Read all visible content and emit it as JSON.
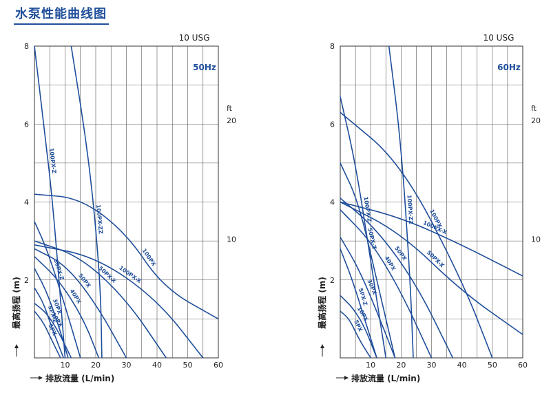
{
  "page": {
    "title": "水泵性能曲线图"
  },
  "colors": {
    "curve": "#1f4e9b",
    "frame": "#333333",
    "grid": "#555555",
    "text": "#222222",
    "title": "#1f4e9b",
    "background": "#ffffff"
  },
  "chart_data": [
    {
      "type": "line",
      "frequency_label": "50Hz",
      "top_axis_label": "10 USG",
      "right_axis_unit": "ft",
      "ylabel": "最高扬程 (m)",
      "xlabel": "排放流量 (L/min)",
      "xlim": [
        0,
        60
      ],
      "ylim": [
        0,
        8
      ],
      "x_ticks": [
        10,
        20,
        30,
        40,
        50,
        60
      ],
      "y_ticks": [
        2,
        4,
        6,
        8
      ],
      "right_ticks": [
        10,
        20
      ],
      "grid": true,
      "series": [
        {
          "name": "5PX",
          "x": [
            0,
            3,
            6,
            8.5
          ],
          "y": [
            1.2,
            0.9,
            0.4,
            0
          ]
        },
        {
          "name": "5PX-Z",
          "x": [
            0,
            3,
            6,
            9.5
          ],
          "y": [
            1.8,
            1.4,
            0.7,
            0
          ]
        },
        {
          "name": "10PX",
          "x": [
            0,
            4,
            8,
            12
          ],
          "y": [
            1.4,
            1.15,
            0.65,
            0
          ]
        },
        {
          "name": "30PX",
          "x": [
            0,
            4,
            8,
            11
          ],
          "y": [
            2.3,
            1.7,
            0.8,
            0
          ]
        },
        {
          "name": "40PX",
          "x": [
            0,
            8,
            16,
            21
          ],
          "y": [
            2.6,
            2.0,
            1.0,
            0
          ]
        },
        {
          "name": "50PX",
          "x": [
            0,
            10,
            20,
            30
          ],
          "y": [
            2.8,
            2.4,
            1.4,
            0
          ]
        },
        {
          "name": "50PX-Z",
          "x": [
            0,
            4,
            9,
            15
          ],
          "y": [
            3.5,
            2.8,
            1.6,
            0
          ]
        },
        {
          "name": "50PX-X",
          "x": [
            0,
            15,
            30,
            43
          ],
          "y": [
            3.0,
            2.6,
            1.5,
            0
          ]
        },
        {
          "name": "100PX-X",
          "x": [
            0,
            20,
            40,
            55
          ],
          "y": [
            2.9,
            2.6,
            1.5,
            0
          ]
        },
        {
          "name": "100PX",
          "x": [
            0,
            15,
            30,
            42,
            60
          ],
          "y": [
            4.2,
            4.1,
            3.2,
            1.8,
            1.0
          ]
        },
        {
          "name": "100PX-Z",
          "x": [
            0,
            3,
            6,
            10
          ],
          "y": [
            8.0,
            6.0,
            4.0,
            0
          ]
        },
        {
          "name": "100PX-ZZ",
          "x": [
            12,
            18,
            21.5,
            22
          ],
          "y": [
            8.0,
            5.0,
            2.0,
            0
          ]
        }
      ]
    },
    {
      "type": "line",
      "frequency_label": "60Hz",
      "top_axis_label": "10 USG",
      "right_axis_unit": "ft",
      "ylabel": "最高扬程 (m)",
      "xlabel": "排放流量 (L/min)",
      "xlim": [
        0,
        60
      ],
      "ylim": [
        0,
        8
      ],
      "x_ticks": [
        10,
        20,
        30,
        40,
        50,
        60
      ],
      "y_ticks": [
        2,
        4,
        6,
        8
      ],
      "right_ticks": [
        10,
        20
      ],
      "grid": true,
      "series": [
        {
          "name": "5PX",
          "x": [
            0,
            3,
            6,
            10
          ],
          "y": [
            1.2,
            1.0,
            0.5,
            0
          ]
        },
        {
          "name": "5PX-Z",
          "x": [
            0,
            4,
            8,
            12
          ],
          "y": [
            2.8,
            2.0,
            1.0,
            0
          ]
        },
        {
          "name": "10PX",
          "x": [
            0,
            4,
            8,
            12
          ],
          "y": [
            1.6,
            1.3,
            0.8,
            0
          ]
        },
        {
          "name": "30PX",
          "x": [
            0,
            6,
            12,
            18
          ],
          "y": [
            3.1,
            2.3,
            1.2,
            0
          ]
        },
        {
          "name": "40PX",
          "x": [
            0,
            10,
            20,
            30
          ],
          "y": [
            3.8,
            3.0,
            1.7,
            0
          ]
        },
        {
          "name": "50PX",
          "x": [
            0,
            12,
            25,
            37
          ],
          "y": [
            4.1,
            3.3,
            1.9,
            0
          ]
        },
        {
          "name": "50PX-Z",
          "x": [
            0,
            6,
            12,
            18
          ],
          "y": [
            5.0,
            4.0,
            2.0,
            0
          ]
        },
        {
          "name": "50PX-X",
          "x": [
            0,
            20,
            40,
            60
          ],
          "y": [
            4.0,
            3.2,
            1.7,
            0.6
          ]
        },
        {
          "name": "100PX-X",
          "x": [
            0,
            20,
            40,
            60
          ],
          "y": [
            4.0,
            3.6,
            2.9,
            2.1
          ]
        },
        {
          "name": "100PX",
          "x": [
            0,
            20,
            40,
            50
          ],
          "y": [
            6.3,
            5.0,
            2.0,
            0
          ]
        },
        {
          "name": "100PX-Z",
          "x": [
            0,
            5,
            10,
            15
          ],
          "y": [
            6.7,
            5.0,
            2.5,
            0
          ]
        },
        {
          "name": "100PX-ZZ",
          "x": [
            16,
            20,
            23,
            24
          ],
          "y": [
            8.0,
            5.5,
            2.0,
            0
          ]
        }
      ]
    }
  ]
}
